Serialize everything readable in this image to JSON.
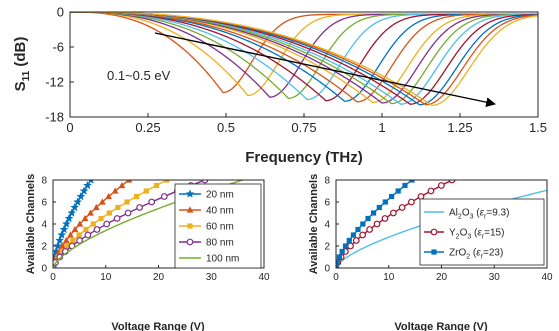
{
  "chart_data": [
    {
      "type": "line",
      "xlabel": "Frequency (THz)",
      "ylabel_main": "S",
      "ylabel_sub": "11",
      "ylabel_unit": " (dB)",
      "xlim": [
        0,
        1.5
      ],
      "ylim": [
        -18,
        0
      ],
      "xticks": [
        "0",
        "0.25",
        "0.5",
        "0.75",
        "1",
        "1.25",
        "1.5"
      ],
      "xtick_values": [
        0,
        0.25,
        0.5,
        0.75,
        1,
        1.25,
        1.5
      ],
      "yticks": [
        "0",
        "-6",
        "-12",
        "-18"
      ],
      "ytick_values": [
        0,
        -6,
        -12,
        -18
      ],
      "annotation": "0.1~0.5 eV",
      "series": [
        {
          "color": "#D95319",
          "dip_freq": 0.49,
          "dip_db": -13.8
        },
        {
          "color": "#EDB120",
          "dip_freq": 0.57,
          "dip_db": -14.3
        },
        {
          "color": "#7E2F8E",
          "dip_freq": 0.64,
          "dip_db": -14.6
        },
        {
          "color": "#77AC30",
          "dip_freq": 0.7,
          "dip_db": -14.8
        },
        {
          "color": "#4DBEEE",
          "dip_freq": 0.76,
          "dip_db": -15.0
        },
        {
          "color": "#A2142F",
          "dip_freq": 0.82,
          "dip_db": -15.2
        },
        {
          "color": "#0072BD",
          "dip_freq": 0.88,
          "dip_db": -15.3
        },
        {
          "color": "#D95319",
          "dip_freq": 0.92,
          "dip_db": -15.4
        },
        {
          "color": "#EDB120",
          "dip_freq": 0.97,
          "dip_db": -15.5
        },
        {
          "color": "#7E2F8E",
          "dip_freq": 1.0,
          "dip_db": -15.6
        },
        {
          "color": "#77AC30",
          "dip_freq": 1.03,
          "dip_db": -15.7
        },
        {
          "color": "#4DBEEE",
          "dip_freq": 1.06,
          "dip_db": -15.8
        },
        {
          "color": "#A2142F",
          "dip_freq": 1.09,
          "dip_db": -15.8
        },
        {
          "color": "#0072BD",
          "dip_freq": 1.12,
          "dip_db": -15.9
        },
        {
          "color": "#D95319",
          "dip_freq": 1.14,
          "dip_db": -15.9
        },
        {
          "color": "#EDB120",
          "dip_freq": 1.16,
          "dip_db": -16.0
        }
      ]
    },
    {
      "type": "line",
      "xlabel": "Voltage Range (V)",
      "ylabel": "Available Channels",
      "xlim": [
        0,
        40
      ],
      "ylim": [
        0,
        8
      ],
      "xticks": [
        "0",
        "10",
        "20",
        "30",
        "40"
      ],
      "xtick_values": [
        0,
        10,
        20,
        30,
        40
      ],
      "yticks": [
        "0",
        "2",
        "4",
        "6",
        "8"
      ],
      "ytick_values": [
        0,
        2,
        4,
        6,
        8
      ],
      "legend_position": "top-right",
      "series": [
        {
          "name": "20 nm",
          "color": "#0072BD",
          "marker": "star",
          "vmax": 7.2
        },
        {
          "name": "40 nm",
          "color": "#D95319",
          "marker": "triangle",
          "vmax": 14.4
        },
        {
          "name": "60 nm",
          "color": "#EDB120",
          "marker": "square",
          "vmax": 21.6
        },
        {
          "name": "80 nm",
          "color": "#7E2F8E",
          "marker": "circle",
          "vmax": 28.8
        },
        {
          "name": "100 nm",
          "color": "#77AC30",
          "marker": "none",
          "vmax": 36.0
        }
      ]
    },
    {
      "type": "line",
      "xlabel": "Voltage Range (V)",
      "ylabel": "Available Channels",
      "xlim": [
        0,
        40
      ],
      "ylim": [
        0,
        8
      ],
      "xticks": [
        "0",
        "10",
        "20",
        "30",
        "40"
      ],
      "xtick_values": [
        0,
        10,
        20,
        30,
        40
      ],
      "yticks": [
        "0",
        "2",
        "4",
        "6",
        "8"
      ],
      "ytick_values": [
        0,
        2,
        4,
        6,
        8
      ],
      "legend_position": "bottom-right",
      "series": [
        {
          "name_main": "Al",
          "name_sub": "2",
          "name_tail": "O",
          "name_sub2": "3",
          "eps_prefix": " (",
          "eps_sym": "ε",
          "eps_sub": "r",
          "eps_val": "=9.3)",
          "color": "#4DBEEE",
          "marker": "none",
          "vmax": 48.2
        },
        {
          "name_main": "Y",
          "name_sub": "2",
          "name_tail": "O",
          "name_sub2": "3",
          "eps_prefix": " (",
          "eps_sym": "ε",
          "eps_sub": "r",
          "eps_val": "=15)",
          "color": "#A2142F",
          "marker": "circle",
          "vmax": 22.0
        },
        {
          "name_main": "ZrO",
          "name_sub": "2",
          "name_tail": "",
          "name_sub2": "",
          "eps_prefix": " (",
          "eps_sym": "ε",
          "eps_sub": "r",
          "eps_val": "=23)",
          "color": "#0072BD",
          "marker": "square",
          "vmax": 14.4
        }
      ]
    }
  ]
}
